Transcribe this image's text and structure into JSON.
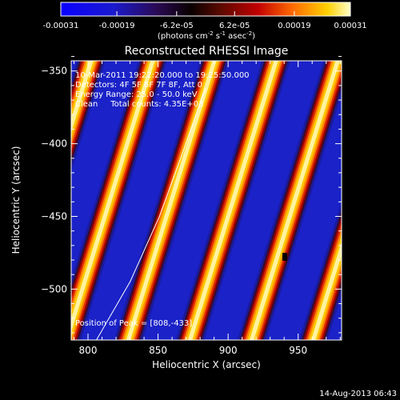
{
  "chart_data": {
    "type": "heatmap",
    "title": "Reconstructed RHESSI Image",
    "xlabel": "Heliocentric X (arcsec)",
    "ylabel": "Heliocentric Y (arcsec)",
    "xlim": [
      788,
      981
    ],
    "ylim": [
      -535,
      -343
    ],
    "x_ticks": [
      800,
      850,
      900,
      950
    ],
    "y_ticks": [
      -350,
      -400,
      -450,
      -500
    ],
    "colorbar": {
      "ticks": [
        "-0.00031",
        "-0.00019",
        "-6.2e-05",
        "6.2e-05",
        "0.00019",
        "0.00031"
      ],
      "units_prefix": "(photons cm",
      "units_exp1": "-2",
      "units_mid": " s",
      "units_exp2": "-1",
      "units_mid2": " asec",
      "units_exp3": "-2",
      "units_suffix": ")",
      "range": [
        -0.00031,
        0.00031
      ]
    },
    "annotations": [
      "10-Mar-2011 19:22:20.000 to 19:25:50.000",
      "Detectors: 4F 5F 6F 7F 8F, Att 0",
      "Energy Range: 25.0 - 50.0 keV",
      "Clean     Total counts: 4.35E+03"
    ],
    "peak_note": "Position of Peak = [808,-433]",
    "peak": [
      808,
      -433
    ],
    "stripe_pattern": {
      "description_values": "periodic diagonal stripes",
      "period_x_arcsec": 44,
      "slant_dx_per_dy": 0.32
    },
    "limb_curve": [
      [
        806,
        -535
      ],
      [
        830,
        -495
      ],
      [
        851,
        -450
      ],
      [
        868,
        -405
      ],
      [
        880,
        -372
      ],
      [
        884,
        -362
      ]
    ]
  },
  "footer": {
    "date": "14-Aug-2013 06:43"
  }
}
